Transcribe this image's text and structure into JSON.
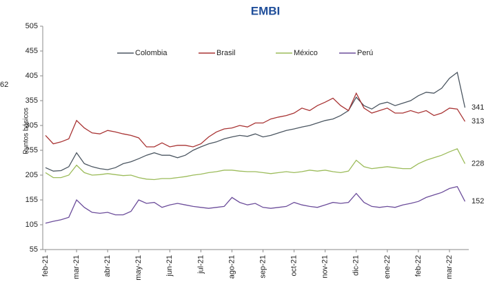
{
  "chart_data": {
    "type": "line",
    "title": "EMBI",
    "y_label": "Puntos básicos",
    "annotation": "62",
    "categories": [
      "feb-21",
      null,
      null,
      null,
      "mar-21",
      null,
      null,
      null,
      "abr-21",
      null,
      null,
      null,
      "may-21",
      null,
      null,
      null,
      "jun-21",
      null,
      null,
      null,
      "jul-21",
      null,
      null,
      null,
      "ago-21",
      null,
      null,
      null,
      "sep-21",
      null,
      null,
      null,
      "oct-21",
      null,
      null,
      null,
      "nov-21",
      null,
      null,
      null,
      "dic-21",
      null,
      null,
      null,
      "ene-22",
      null,
      null,
      null,
      "feb-22",
      null,
      null,
      null,
      "mar-22",
      null,
      null
    ],
    "series": [
      {
        "name": "Colombia",
        "color": "#4a5560",
        "end_label": "341",
        "values": [
          220,
          213,
          214,
          222,
          250,
          228,
          222,
          218,
          216,
          220,
          228,
          232,
          238,
          245,
          250,
          245,
          245,
          240,
          245,
          255,
          262,
          268,
          272,
          278,
          282,
          285,
          283,
          288,
          282,
          285,
          290,
          295,
          298,
          302,
          305,
          310,
          315,
          318,
          325,
          335,
          362,
          345,
          338,
          348,
          352,
          345,
          350,
          355,
          365,
          372,
          370,
          380,
          400,
          412,
          341
        ]
      },
      {
        "name": "Brasil",
        "color": "#a83232",
        "end_label": "313",
        "values": [
          285,
          268,
          272,
          278,
          315,
          300,
          290,
          288,
          295,
          292,
          288,
          285,
          280,
          262,
          262,
          270,
          262,
          265,
          265,
          262,
          268,
          282,
          292,
          298,
          300,
          305,
          302,
          310,
          310,
          318,
          322,
          325,
          330,
          340,
          335,
          345,
          352,
          360,
          345,
          335,
          370,
          340,
          330,
          335,
          340,
          330,
          330,
          335,
          330,
          335,
          325,
          330,
          340,
          338,
          313
        ]
      },
      {
        "name": "México",
        "color": "#9bbb59",
        "end_label": "228",
        "values": [
          210,
          200,
          200,
          205,
          225,
          210,
          205,
          206,
          208,
          206,
          204,
          205,
          200,
          197,
          196,
          198,
          198,
          200,
          202,
          205,
          207,
          210,
          212,
          215,
          215,
          213,
          212,
          212,
          210,
          208,
          210,
          212,
          210,
          212,
          215,
          213,
          215,
          212,
          210,
          213,
          235,
          222,
          218,
          220,
          222,
          220,
          218,
          218,
          228,
          235,
          240,
          245,
          252,
          258,
          228
        ]
      },
      {
        "name": "Perú",
        "color": "#6b4c9a",
        "end_label": "152",
        "values": [
          108,
          112,
          115,
          120,
          155,
          140,
          130,
          128,
          130,
          125,
          125,
          132,
          155,
          148,
          150,
          140,
          145,
          148,
          145,
          142,
          140,
          138,
          140,
          142,
          160,
          150,
          145,
          148,
          140,
          138,
          140,
          142,
          150,
          145,
          142,
          140,
          145,
          150,
          148,
          150,
          168,
          150,
          142,
          140,
          142,
          140,
          145,
          148,
          152,
          160,
          165,
          170,
          178,
          182,
          152
        ]
      }
    ],
    "ylim": [
      55,
      505
    ],
    "yticks": [
      55,
      105,
      155,
      205,
      255,
      305,
      355,
      405,
      455,
      505
    ],
    "grid": false,
    "legend": "top"
  }
}
